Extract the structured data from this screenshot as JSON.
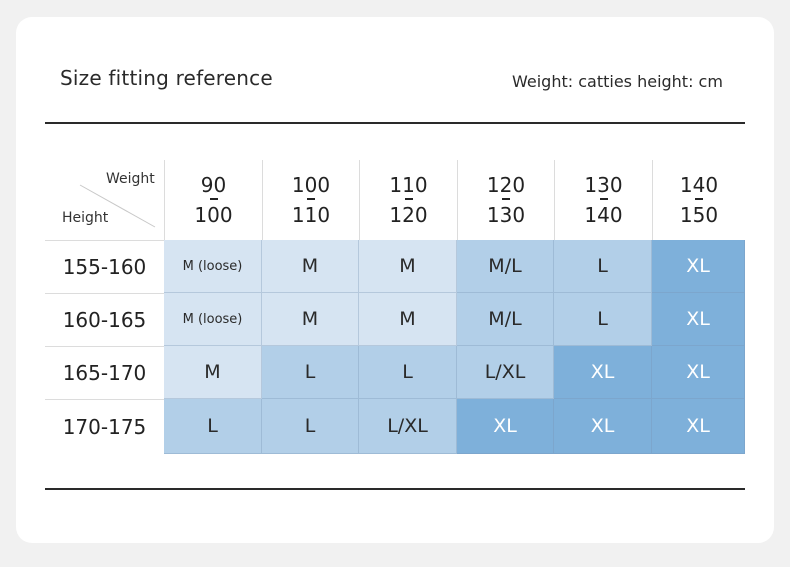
{
  "header": {
    "title": "Size fitting reference",
    "units": "Weight: catties height: cm"
  },
  "table": {
    "corner_weight_label": "Weight",
    "corner_height_label": "Height",
    "columns": [
      {
        "top": "90",
        "bottom": "100"
      },
      {
        "top": "100",
        "bottom": "110"
      },
      {
        "top": "110",
        "bottom": "120"
      },
      {
        "top": "120",
        "bottom": "130"
      },
      {
        "top": "130",
        "bottom": "140"
      },
      {
        "top": "140",
        "bottom": "150"
      }
    ],
    "rows": [
      {
        "height": "155-160",
        "cells": [
          "M (loose)",
          "M",
          "M",
          "M/L",
          "L",
          "XL"
        ]
      },
      {
        "height": "160-165",
        "cells": [
          "M (loose)",
          "M",
          "M",
          "M/L",
          "L",
          "XL"
        ]
      },
      {
        "height": "165-170",
        "cells": [
          "M",
          "L",
          "L",
          "L/XL",
          "XL",
          "XL"
        ]
      },
      {
        "height": "170-175",
        "cells": [
          "L",
          "L",
          "L/XL",
          "XL",
          "XL",
          "XL"
        ]
      }
    ],
    "shade_levels": [
      [
        1,
        1,
        1,
        2,
        2,
        3
      ],
      [
        1,
        1,
        1,
        2,
        2,
        3
      ],
      [
        1,
        2,
        2,
        2,
        3,
        3
      ],
      [
        2,
        2,
        2,
        3,
        3,
        3
      ]
    ],
    "colors": {
      "light": "#d6e4f2",
      "medium": "#b2cfe8",
      "dark": "#7eb0da"
    }
  }
}
